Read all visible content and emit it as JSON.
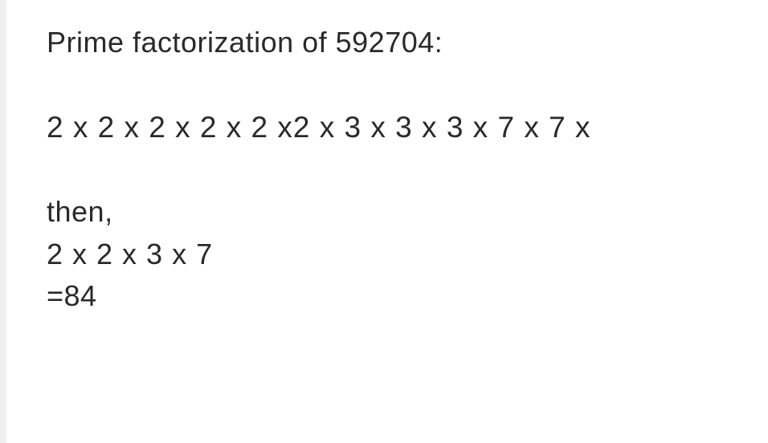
{
  "document": {
    "title": "Prime factorization of 592704:",
    "factorization": "2 x 2 x 2 x 2 x 2 x2 x 3 x 3 x 3 x 7 x 7 x",
    "then_label": "then,",
    "simplified": "2 x 2 x 3 x 7",
    "result": "=84",
    "text_color": "#2a2a2a",
    "background_color": "#ffffff",
    "font_size": 36,
    "font_family": "Arial, Helvetica, sans-serif"
  }
}
